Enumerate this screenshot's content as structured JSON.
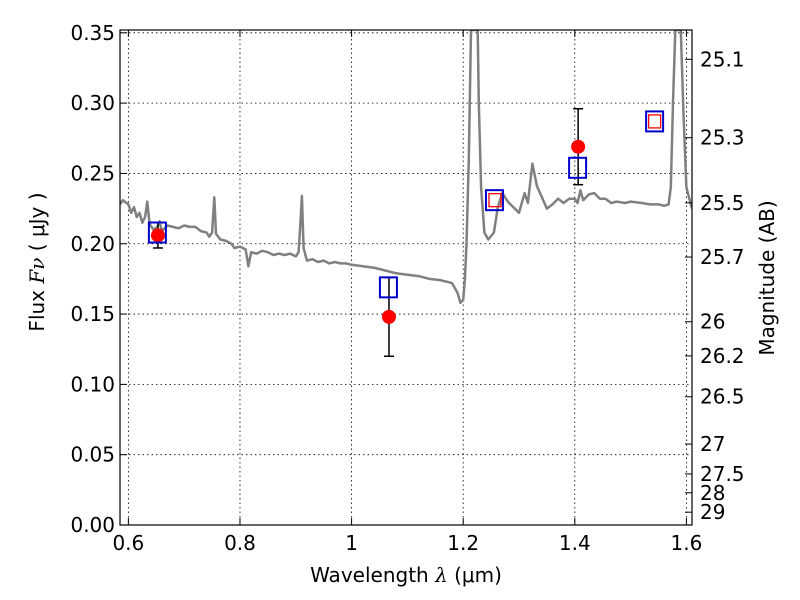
{
  "chart_data": {
    "type": "scatter",
    "x_axis": {
      "label_pre": "Wavelength  ",
      "label_sym": "λ",
      "label_post": " (μm)",
      "lim": [
        0.585,
        1.61
      ],
      "ticks": [
        0.6,
        0.8,
        1.0,
        1.2,
        1.4,
        1.6
      ],
      "tick_labels": [
        "0.6",
        "0.8",
        "1",
        "1.2",
        "1.4",
        "1.6"
      ]
    },
    "y_axis": {
      "label_pre": "Flux  ",
      "label_sym": "Fν",
      "label_post": "  ( μJy )",
      "lim": [
        0.0,
        0.352
      ],
      "ticks": [
        0.0,
        0.05,
        0.1,
        0.15,
        0.2,
        0.25,
        0.3,
        0.35
      ],
      "tick_labels": [
        "0.00",
        "0.05",
        "0.10",
        "0.15",
        "0.20",
        "0.25",
        "0.30",
        "0.35"
      ]
    },
    "y2_axis": {
      "label": "Magnitude (AB)",
      "ticks": [
        25.1,
        25.3,
        25.5,
        25.7,
        26,
        26.2,
        26.5,
        27,
        27.5,
        28,
        29
      ],
      "tick_labels": [
        "25.1",
        "25.3",
        "25.5",
        "25.7",
        "26",
        "26.2",
        "26.5",
        "27",
        "27.5",
        "28",
        "29"
      ]
    },
    "grid": true,
    "series": [
      {
        "kind": "model-spectrum-line",
        "color": "#808080",
        "points": [
          [
            0.585,
            0.228
          ],
          [
            0.59,
            0.231
          ],
          [
            0.6,
            0.228
          ],
          [
            0.605,
            0.222
          ],
          [
            0.61,
            0.226
          ],
          [
            0.615,
            0.219
          ],
          [
            0.62,
            0.222
          ],
          [
            0.625,
            0.215
          ],
          [
            0.63,
            0.219
          ],
          [
            0.634,
            0.23
          ],
          [
            0.638,
            0.214
          ],
          [
            0.645,
            0.21
          ],
          [
            0.652,
            0.212
          ],
          [
            0.656,
            0.216
          ],
          [
            0.66,
            0.209
          ],
          [
            0.67,
            0.213
          ],
          [
            0.68,
            0.212
          ],
          [
            0.69,
            0.211
          ],
          [
            0.7,
            0.213
          ],
          [
            0.71,
            0.212
          ],
          [
            0.72,
            0.212
          ],
          [
            0.73,
            0.209
          ],
          [
            0.74,
            0.208
          ],
          [
            0.745,
            0.205
          ],
          [
            0.75,
            0.208
          ],
          [
            0.754,
            0.233
          ],
          [
            0.757,
            0.207
          ],
          [
            0.765,
            0.203
          ],
          [
            0.775,
            0.202
          ],
          [
            0.785,
            0.2
          ],
          [
            0.79,
            0.197
          ],
          [
            0.8,
            0.198
          ],
          [
            0.81,
            0.196
          ],
          [
            0.815,
            0.184
          ],
          [
            0.82,
            0.194
          ],
          [
            0.83,
            0.193
          ],
          [
            0.84,
            0.195
          ],
          [
            0.85,
            0.194
          ],
          [
            0.86,
            0.192
          ],
          [
            0.87,
            0.193
          ],
          [
            0.88,
            0.192
          ],
          [
            0.89,
            0.193
          ],
          [
            0.9,
            0.191
          ],
          [
            0.905,
            0.194
          ],
          [
            0.908,
            0.212
          ],
          [
            0.911,
            0.234
          ],
          [
            0.914,
            0.197
          ],
          [
            0.92,
            0.188
          ],
          [
            0.93,
            0.189
          ],
          [
            0.94,
            0.187
          ],
          [
            0.95,
            0.188
          ],
          [
            0.96,
            0.186
          ],
          [
            0.97,
            0.187
          ],
          [
            0.98,
            0.186
          ],
          [
            0.99,
            0.186
          ],
          [
            1.0,
            0.185
          ],
          [
            1.02,
            0.184
          ],
          [
            1.04,
            0.183
          ],
          [
            1.06,
            0.181
          ],
          [
            1.08,
            0.179
          ],
          [
            1.1,
            0.178
          ],
          [
            1.12,
            0.177
          ],
          [
            1.14,
            0.175
          ],
          [
            1.16,
            0.174
          ],
          [
            1.17,
            0.173
          ],
          [
            1.18,
            0.172
          ],
          [
            1.19,
            0.165
          ],
          [
            1.195,
            0.158
          ],
          [
            1.2,
            0.16
          ],
          [
            1.203,
            0.175
          ],
          [
            1.206,
            0.2
          ],
          [
            1.21,
            0.26
          ],
          [
            1.214,
            0.352
          ],
          [
            1.226,
            0.352
          ],
          [
            1.228,
            0.3
          ],
          [
            1.232,
            0.24
          ],
          [
            1.238,
            0.208
          ],
          [
            1.245,
            0.203
          ],
          [
            1.255,
            0.208
          ],
          [
            1.262,
            0.226
          ],
          [
            1.27,
            0.236
          ],
          [
            1.28,
            0.23
          ],
          [
            1.29,
            0.226
          ],
          [
            1.3,
            0.222
          ],
          [
            1.31,
            0.236
          ],
          [
            1.316,
            0.229
          ],
          [
            1.324,
            0.257
          ],
          [
            1.332,
            0.241
          ],
          [
            1.34,
            0.234
          ],
          [
            1.35,
            0.225
          ],
          [
            1.36,
            0.228
          ],
          [
            1.37,
            0.232
          ],
          [
            1.38,
            0.229
          ],
          [
            1.39,
            0.232
          ],
          [
            1.4,
            0.232
          ],
          [
            1.405,
            0.229
          ],
          [
            1.41,
            0.238
          ],
          [
            1.415,
            0.231
          ],
          [
            1.425,
            0.235
          ],
          [
            1.435,
            0.236
          ],
          [
            1.445,
            0.232
          ],
          [
            1.455,
            0.232
          ],
          [
            1.465,
            0.229
          ],
          [
            1.475,
            0.23
          ],
          [
            1.49,
            0.229
          ],
          [
            1.5,
            0.23
          ],
          [
            1.52,
            0.229
          ],
          [
            1.535,
            0.228
          ],
          [
            1.55,
            0.228
          ],
          [
            1.56,
            0.227
          ],
          [
            1.568,
            0.228
          ],
          [
            1.572,
            0.24
          ],
          [
            1.576,
            0.3
          ],
          [
            1.58,
            0.352
          ],
          [
            1.59,
            0.352
          ],
          [
            1.595,
            0.29
          ],
          [
            1.6,
            0.24
          ],
          [
            1.61,
            0.225
          ]
        ]
      },
      {
        "kind": "observed-points",
        "color": "#ff0000",
        "errorbar_color": "#000000",
        "points": [
          {
            "x": 0.653,
            "y": 0.206,
            "err": 0.009
          },
          {
            "x": 1.067,
            "y": 0.148,
            "err": 0.028
          },
          {
            "x": 1.406,
            "y": 0.269,
            "err": 0.027
          }
        ]
      },
      {
        "kind": "model-photometry-squares",
        "color": "#0000cc",
        "points": [
          {
            "x": 0.652,
            "y": 0.208
          },
          {
            "x": 1.066,
            "y": 0.169
          },
          {
            "x": 1.256,
            "y": 0.231
          },
          {
            "x": 1.405,
            "y": 0.254
          }
        ]
      },
      {
        "kind": "small-red-squares",
        "color": "#ff0000",
        "points": [
          {
            "x": 1.257,
            "y": 0.231
          },
          {
            "x": 1.543,
            "y": 0.287
          }
        ]
      },
      {
        "kind": "blue-squares-outer",
        "color": "#0000cc",
        "points": [
          {
            "x": 1.543,
            "y": 0.287
          }
        ]
      }
    ]
  }
}
